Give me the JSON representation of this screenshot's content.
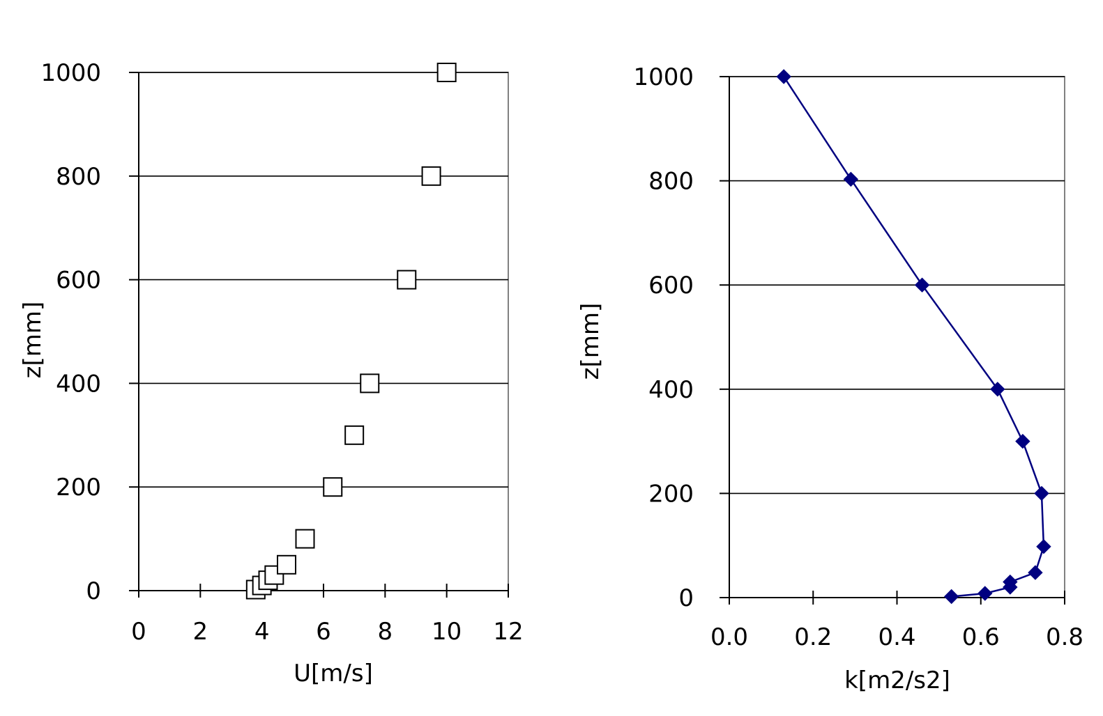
{
  "chart_data": [
    {
      "type": "scatter",
      "xlabel": "U[m/s]",
      "ylabel": "z[mm]",
      "xlim": [
        0,
        12
      ],
      "ylim": [
        0,
        1000
      ],
      "xticks": [
        "0",
        "2",
        "4",
        "6",
        "8",
        "10",
        "12"
      ],
      "yticks": [
        "0",
        "200",
        "400",
        "600",
        "800",
        "1000"
      ],
      "grid": "horizontal",
      "marker": "open-square",
      "points": [
        {
          "x": 3.8,
          "y": 2
        },
        {
          "x": 4.0,
          "y": 10
        },
        {
          "x": 4.2,
          "y": 20
        },
        {
          "x": 4.4,
          "y": 30
        },
        {
          "x": 4.8,
          "y": 50
        },
        {
          "x": 5.4,
          "y": 100
        },
        {
          "x": 6.3,
          "y": 200
        },
        {
          "x": 7.0,
          "y": 300
        },
        {
          "x": 7.5,
          "y": 400
        },
        {
          "x": 8.7,
          "y": 600
        },
        {
          "x": 9.5,
          "y": 800
        },
        {
          "x": 10.0,
          "y": 1000
        }
      ]
    },
    {
      "type": "line",
      "xlabel": "k[m2/s2]",
      "ylabel": "z[mm]",
      "xlim": [
        0,
        0.8
      ],
      "ylim": [
        0,
        1000
      ],
      "xticks": [
        "0.0",
        "0.2",
        "0.4",
        "0.6",
        "0.8"
      ],
      "yticks": [
        "0",
        "200",
        "400",
        "600",
        "800",
        "1000"
      ],
      "grid": "horizontal",
      "marker": "filled-diamond",
      "color": "#000080",
      "points": [
        {
          "x": 0.53,
          "y": 2
        },
        {
          "x": 0.61,
          "y": 8
        },
        {
          "x": 0.67,
          "y": 20
        },
        {
          "x": 0.67,
          "y": 30
        },
        {
          "x": 0.73,
          "y": 48
        },
        {
          "x": 0.75,
          "y": 98
        },
        {
          "x": 0.745,
          "y": 200
        },
        {
          "x": 0.7,
          "y": 300
        },
        {
          "x": 0.64,
          "y": 400
        },
        {
          "x": 0.46,
          "y": 600
        },
        {
          "x": 0.29,
          "y": 803
        },
        {
          "x": 0.13,
          "y": 1000
        }
      ]
    }
  ]
}
